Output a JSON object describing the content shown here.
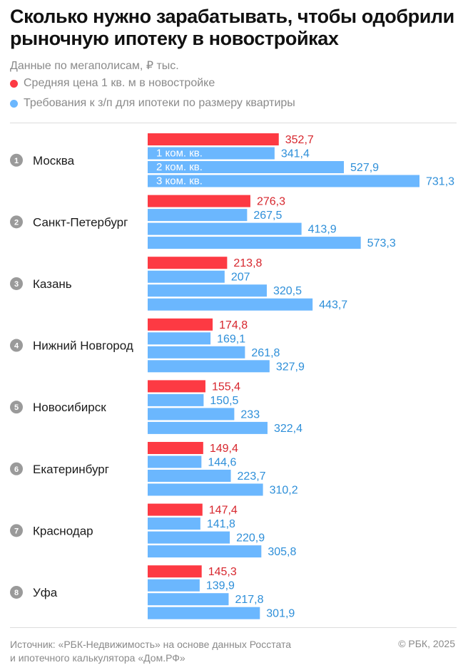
{
  "chart_data": {
    "type": "bar",
    "orientation": "horizontal",
    "title": "Сколько нужно зарабатывать, чтобы одобрили рыночную ипотеку в новостройках",
    "subtitle": "Данные по мегаполисам, ₽ тыс.",
    "legend": [
      {
        "name": "Средняя цена 1 кв. м в новостройке",
        "color": "#fd3a43"
      },
      {
        "name": "Требования к з/п для ипотеки по размеру квартиры",
        "color": "#6bb7fe"
      }
    ],
    "inner_labels": [
      "1 ком. кв.",
      "2 ком. кв.",
      "3 ком. кв."
    ],
    "categories": [
      {
        "rank": "1",
        "city": "Москва",
        "price": 352.7,
        "price_label": "352,7",
        "salary": [
          341.4,
          527.9,
          731.3
        ],
        "salary_labels": [
          "341,4",
          "527,9",
          "731,3"
        ]
      },
      {
        "rank": "2",
        "city": "Санкт-Петербург",
        "price": 276.3,
        "price_label": "276,3",
        "salary": [
          267.5,
          413.9,
          573.3
        ],
        "salary_labels": [
          "267,5",
          "413,9",
          "573,3"
        ]
      },
      {
        "rank": "3",
        "city": "Казань",
        "price": 213.8,
        "price_label": "213,8",
        "salary": [
          207,
          320.5,
          443.7
        ],
        "salary_labels": [
          "207",
          "320,5",
          "443,7"
        ]
      },
      {
        "rank": "4",
        "city": "Нижний Новгород",
        "price": 174.8,
        "price_label": "174,8",
        "salary": [
          169.1,
          261.8,
          327.9
        ],
        "salary_labels": [
          "169,1",
          "261,8",
          "327,9"
        ]
      },
      {
        "rank": "5",
        "city": "Новосибирск",
        "price": 155.4,
        "price_label": "155,4",
        "salary": [
          150.5,
          233,
          322.4
        ],
        "salary_labels": [
          "150,5",
          "233",
          "322,4"
        ]
      },
      {
        "rank": "6",
        "city": "Екатеринбург",
        "price": 149.4,
        "price_label": "149,4",
        "salary": [
          144.6,
          223.7,
          310.2
        ],
        "salary_labels": [
          "144,6",
          "223,7",
          "310,2"
        ]
      },
      {
        "rank": "7",
        "city": "Краснодар",
        "price": 147.4,
        "price_label": "147,4",
        "salary": [
          141.8,
          220.9,
          305.8
        ],
        "salary_labels": [
          "141,8",
          "220,9",
          "305,8"
        ]
      },
      {
        "rank": "8",
        "city": "Уфа",
        "price": 145.3,
        "price_label": "145,3",
        "salary": [
          139.9,
          217.8,
          301.9
        ],
        "salary_labels": [
          "139,9",
          "217,8",
          "301,9"
        ]
      }
    ],
    "colors": {
      "price": "#fd3a43",
      "salary": "#6bb7fe",
      "rank_circle": "#9a9a9a"
    }
  },
  "footer": {
    "source_line1": "Источник: «РБК-Недвижимость» на основе данных Росстата",
    "source_line2": "и ипотечного калькулятора «Дом.РФ»",
    "copyright": "© РБК, 2025"
  }
}
